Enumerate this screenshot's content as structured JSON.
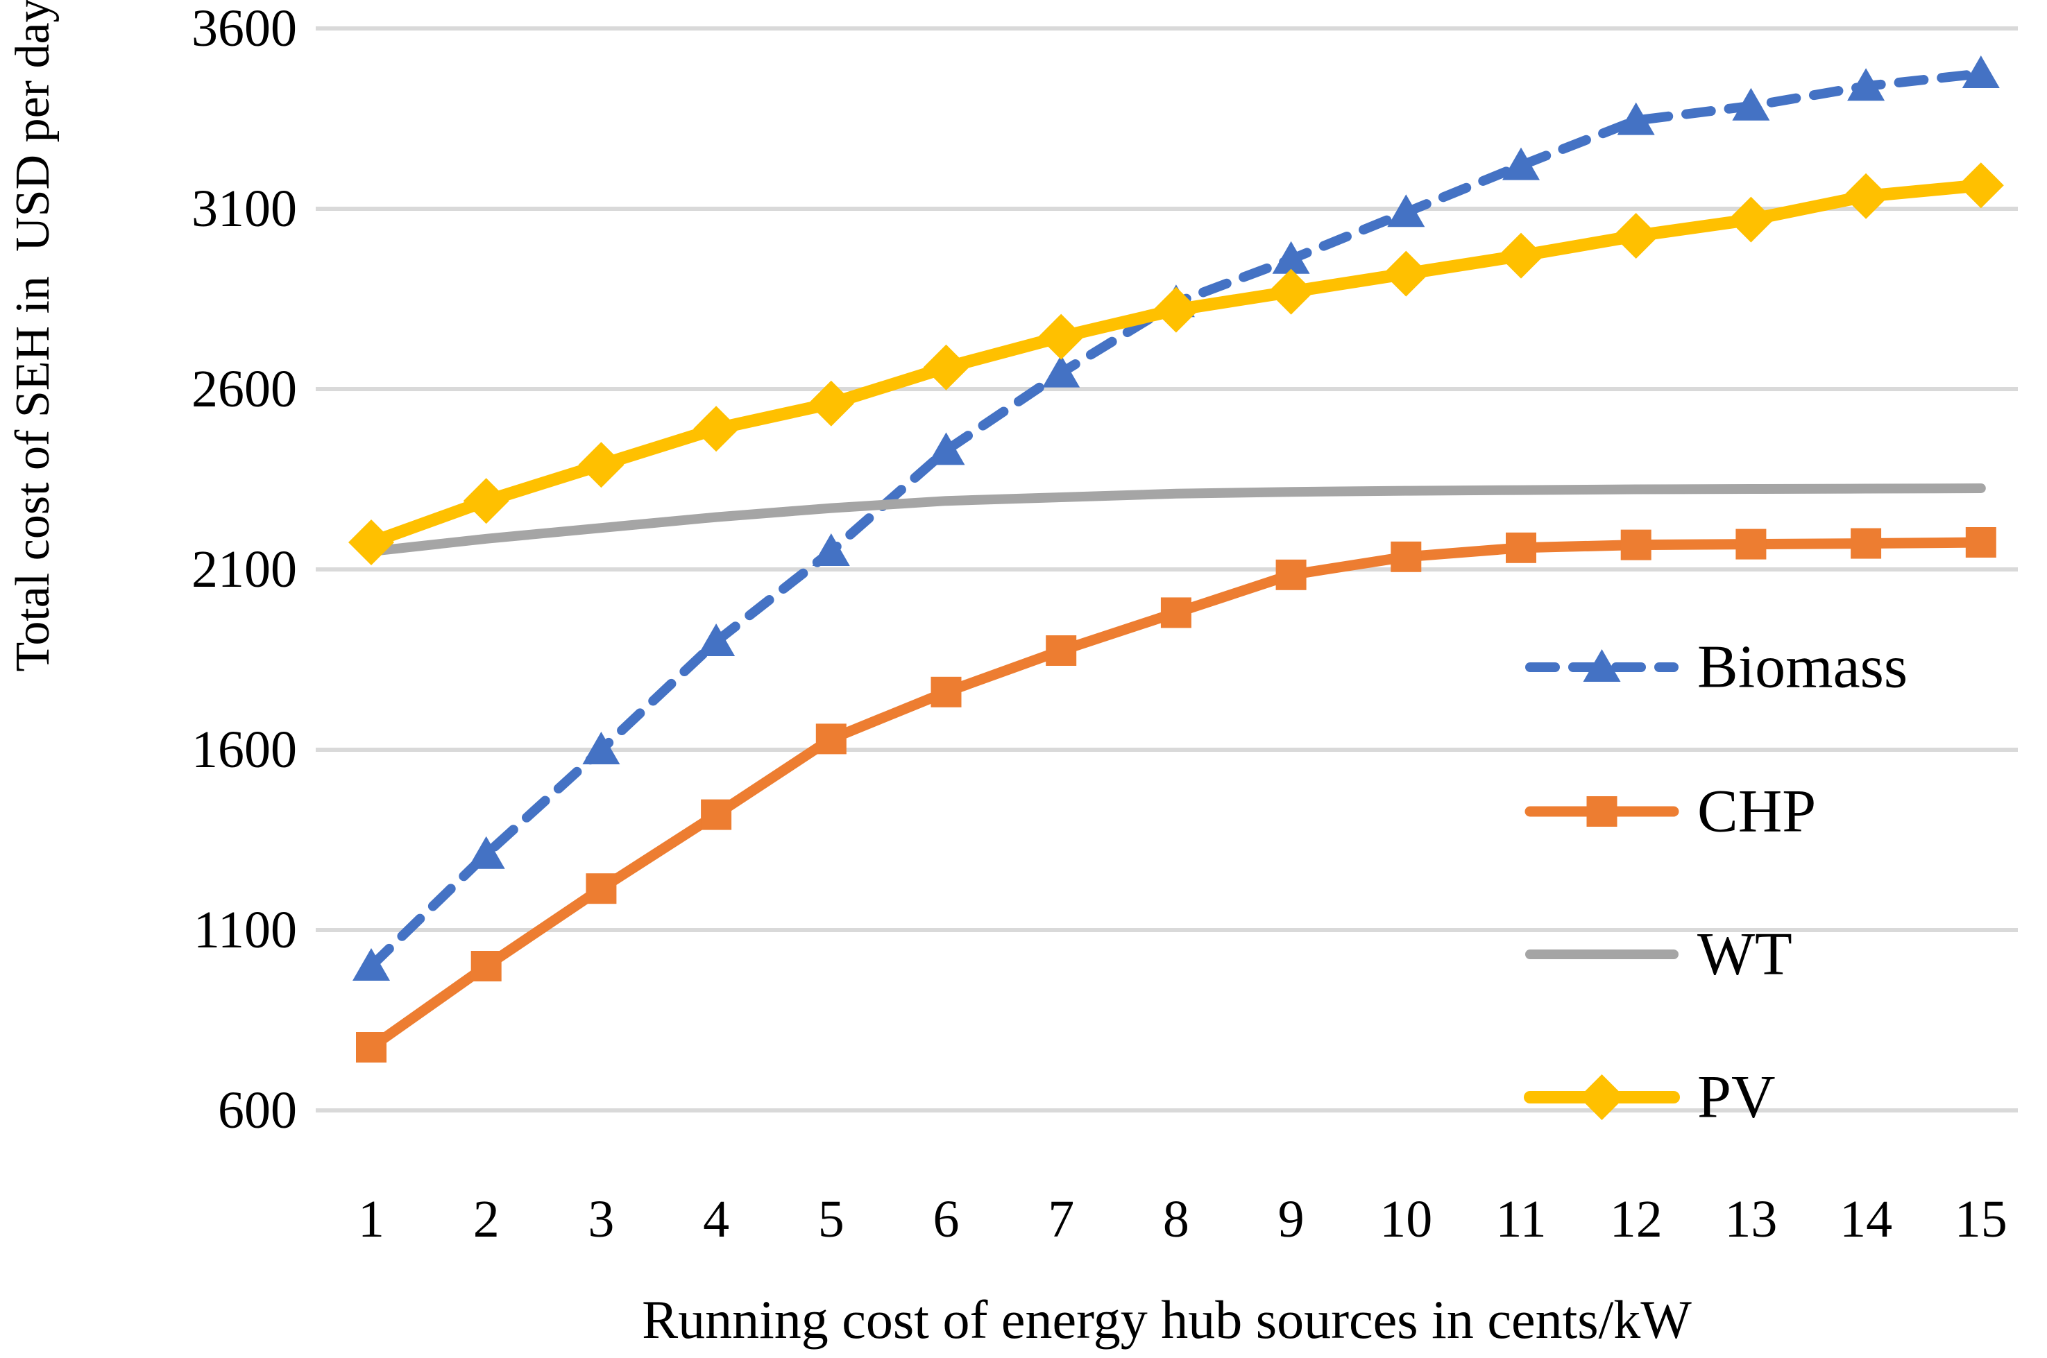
{
  "chart_data": {
    "type": "line",
    "title": "",
    "xlabel": "Running cost of energy hub sources in cents/kW",
    "ylabel": "Total cost of SEH in  USD per day",
    "x": [
      1,
      2,
      3,
      4,
      5,
      6,
      7,
      8,
      9,
      10,
      11,
      12,
      13,
      14,
      15
    ],
    "ylim": [
      600,
      3600
    ],
    "yticks": [
      600,
      1100,
      1600,
      2100,
      2600,
      3100,
      3600
    ],
    "grid": true,
    "legend_position": "right-middle",
    "gridline_color": "#d9d9d9",
    "series": [
      {
        "name": "Biomass",
        "color": "#4472c4",
        "line_style": "dashed",
        "marker": "triangle",
        "values": [
          1000,
          1310,
          1600,
          1900,
          2150,
          2430,
          2645,
          2840,
          2960,
          3090,
          3220,
          3345,
          3385,
          3440,
          3475
        ]
      },
      {
        "name": "CHP",
        "color": "#ed7d31",
        "line_style": "solid",
        "marker": "square",
        "values": [
          775,
          1000,
          1215,
          1420,
          1630,
          1760,
          1875,
          1980,
          2085,
          2135,
          2160,
          2168,
          2170,
          2172,
          2175
        ]
      },
      {
        "name": "WT",
        "color": "#a5a5a5",
        "line_style": "solid",
        "marker": "none",
        "values": [
          2150,
          2185,
          2215,
          2245,
          2270,
          2290,
          2300,
          2310,
          2315,
          2318,
          2320,
          2322,
          2323,
          2324,
          2325
        ]
      },
      {
        "name": "PV",
        "color": "#ffc000",
        "line_style": "solid",
        "marker": "diamond",
        "values": [
          2175,
          2290,
          2390,
          2490,
          2560,
          2660,
          2745,
          2820,
          2870,
          2920,
          2970,
          3025,
          3070,
          3135,
          3165
        ]
      }
    ]
  }
}
